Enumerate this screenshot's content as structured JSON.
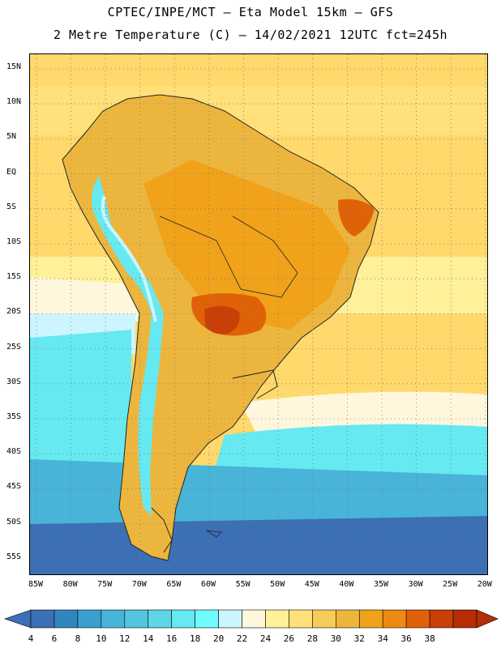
{
  "title_line1": "CPTEC/INPE/MCT –  Eta Model 15km – GFS",
  "title_line2": "2 Metre Temperature (C) – 14/02/2021 12UTC fct=245h",
  "lat_labels": [
    "15N",
    "10N",
    "5N",
    "EQ",
    "5S",
    "10S",
    "15S",
    "20S",
    "25S",
    "30S",
    "35S",
    "40S",
    "45S",
    "50S",
    "55S"
  ],
  "lon_labels": [
    "85W",
    "80W",
    "75W",
    "70W",
    "65W",
    "60W",
    "55W",
    "50W",
    "45W",
    "40W",
    "35W",
    "30W",
    "25W",
    "20W"
  ],
  "colorbar": {
    "labels": [
      "4",
      "6",
      "8",
      "10",
      "12",
      "14",
      "16",
      "18",
      "20",
      "22",
      "24",
      "26",
      "28",
      "30",
      "32",
      "34",
      "36",
      "38"
    ],
    "colors": [
      "#3c6fb4",
      "#2f86c0",
      "#3a9fcf",
      "#48b4d8",
      "#52c6dd",
      "#5cd7e5",
      "#66e9f0",
      "#6ffcff",
      "#cdf5ff",
      "#fff7dd",
      "#fff09a",
      "#ffe07a",
      "#f5cc5a",
      "#ecb63e",
      "#f0a21a",
      "#ec8a14",
      "#e06208",
      "#c84008",
      "#b52e05"
    ],
    "low_arrow_color": "#3c6fb4",
    "high_arrow_color": "#b52e05"
  },
  "colors": {
    "ocean_north": "#ffd96b",
    "ocean_mid": "#fff09a",
    "ocean_pale": "#fff7dd",
    "ocean_south_light": "#66e9f0",
    "ocean_south_mid": "#48b4d8",
    "ocean_south_deep": "#3c6fb4",
    "land": "#ecb63e",
    "andes": "#66e9f0",
    "hot": "#e06208",
    "hottest": "#c84008"
  }
}
